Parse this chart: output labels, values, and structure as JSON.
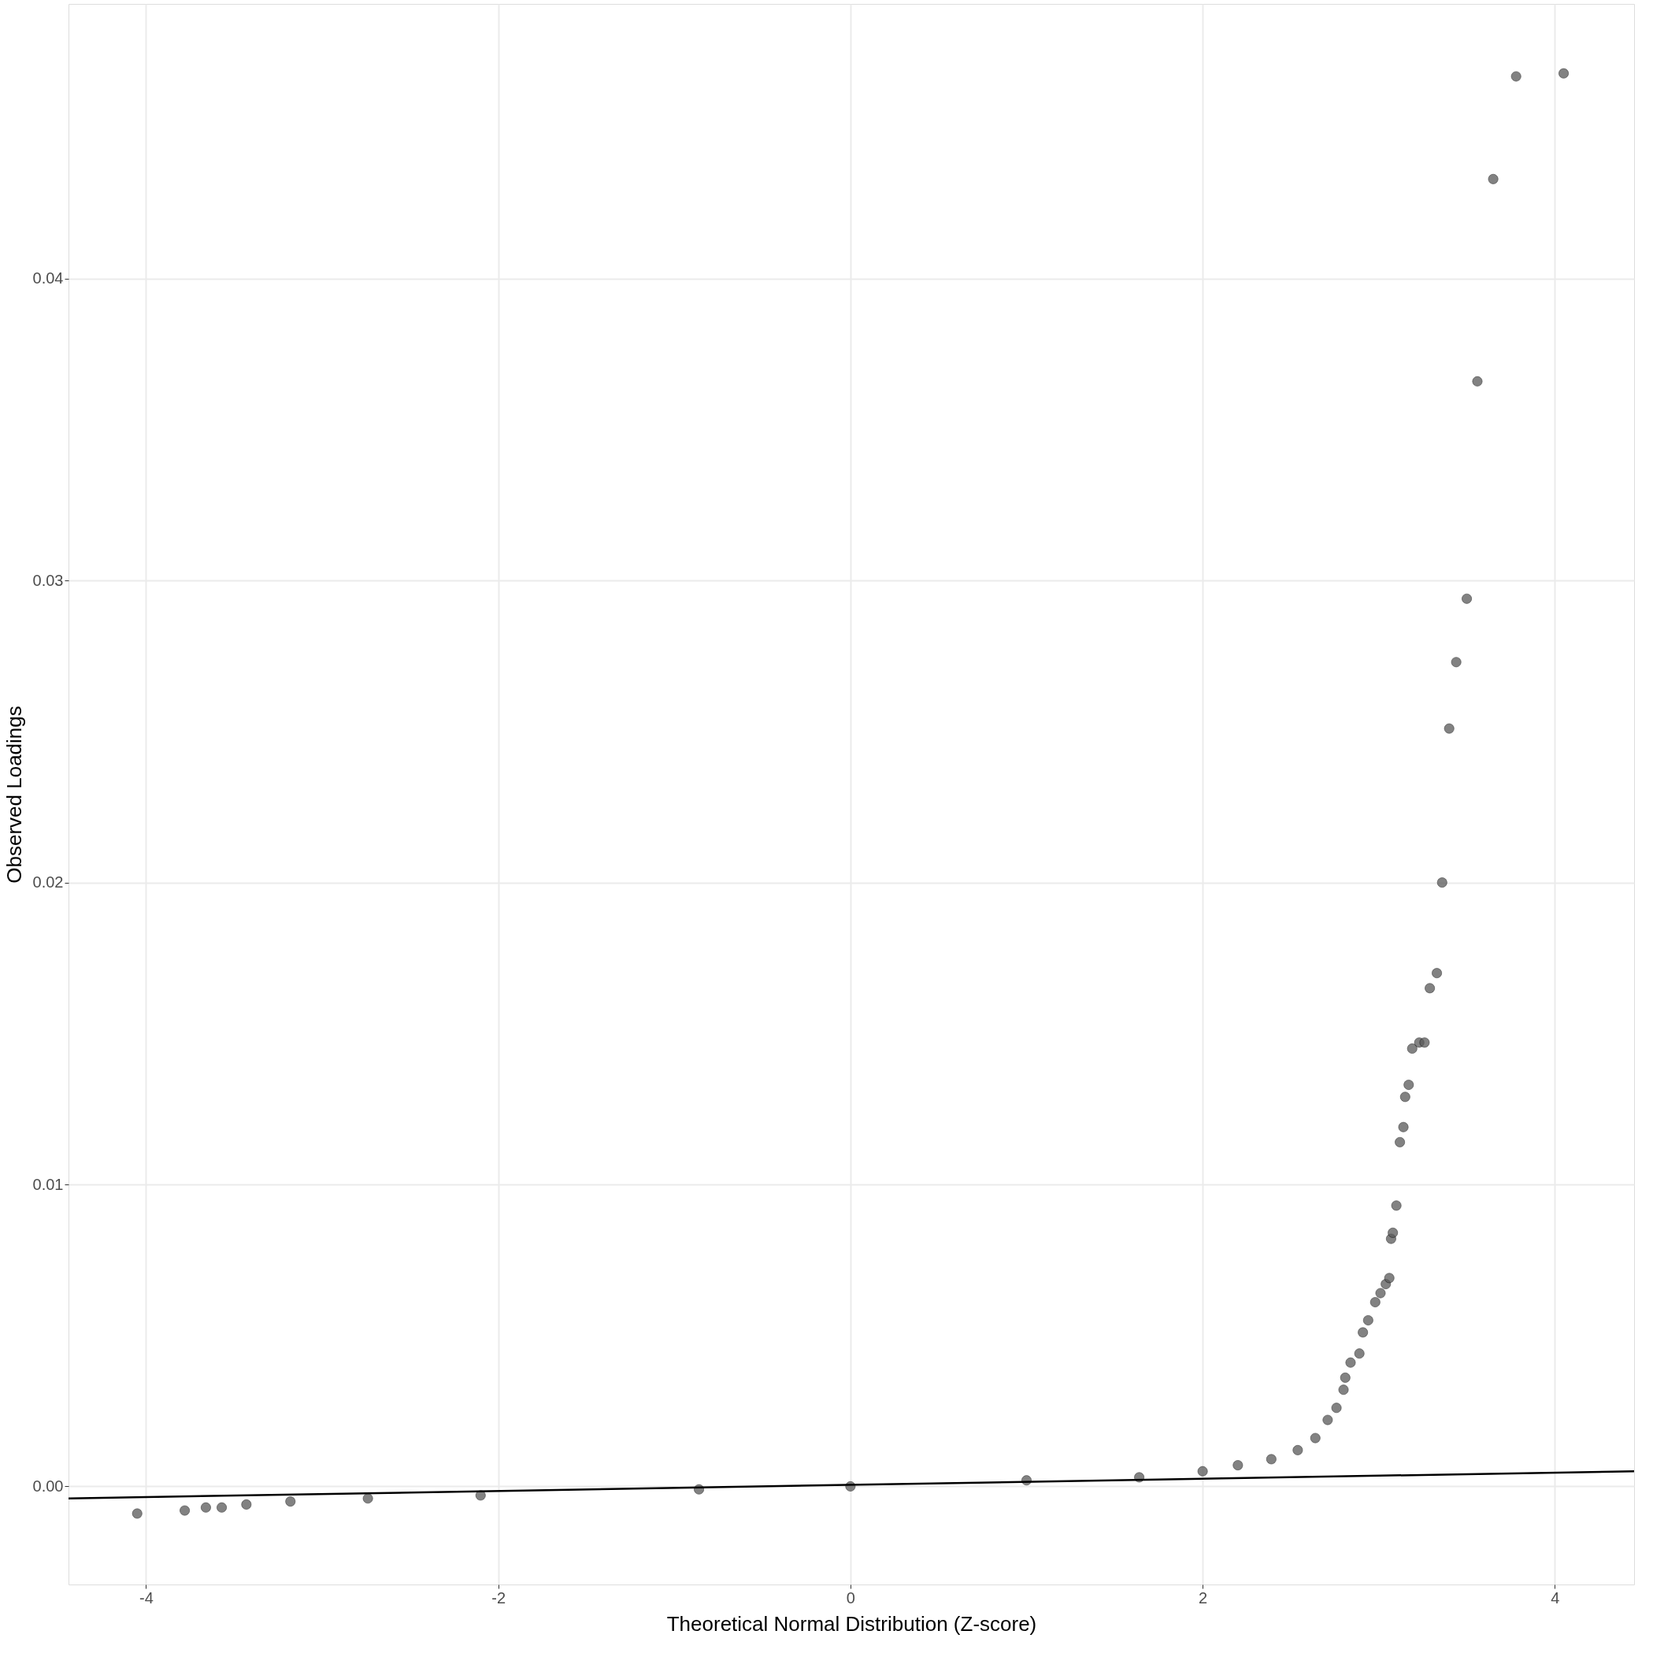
{
  "chart_data": {
    "type": "scatter",
    "xlabel": "Theoretical Normal Distribution (Z-score)",
    "ylabel": "Observed Loadings",
    "xlim": [
      -4.44,
      4.45
    ],
    "ylim": [
      -0.00325,
      0.0491
    ],
    "xticks": [
      {
        "value": -4,
        "label": "-4"
      },
      {
        "value": -2,
        "label": "-2"
      },
      0,
      2,
      4
    ],
    "yticks": [
      {
        "value": 0.0,
        "label": "0.00"
      },
      {
        "value": 0.01,
        "label": "0.01"
      },
      {
        "value": 0.02,
        "label": "0.02"
      },
      {
        "value": 0.03,
        "label": "0.03"
      },
      {
        "value": 0.04,
        "label": "0.04"
      }
    ],
    "grid": true,
    "series": [
      {
        "color": "#595959",
        "marker": "circle",
        "x": [
          -4.05,
          -3.78,
          -3.66,
          -3.57,
          -3.43,
          -3.18,
          -2.74,
          -2.1,
          -0.86,
          0,
          1.0,
          1.64,
          2.0,
          2.2,
          2.39,
          2.54,
          2.64,
          2.71,
          2.76,
          2.8,
          2.81,
          2.84,
          2.89,
          2.91,
          2.94,
          2.98,
          3.01,
          3.04,
          3.06,
          3.07,
          3.08,
          3.1,
          3.12,
          3.14,
          3.15,
          3.17,
          3.19,
          3.23,
          3.26,
          3.29,
          3.33,
          3.36,
          3.4,
          3.44,
          3.5,
          3.56,
          3.65,
          3.78,
          4.05
        ],
        "values": [
          -0.0009,
          -0.0008,
          -0.0007,
          -0.0007,
          -0.0006,
          -0.0005,
          -0.0004,
          -0.0003,
          -0.0001,
          0.0,
          0.0002,
          0.0003,
          0.0005,
          0.0007,
          0.0009,
          0.0012,
          0.0016,
          0.0022,
          0.0026,
          0.0032,
          0.0036,
          0.0041,
          0.0044,
          0.0051,
          0.0055,
          0.0061,
          0.0064,
          0.0067,
          0.0069,
          0.0082,
          0.0084,
          0.0093,
          0.0114,
          0.0119,
          0.0129,
          0.0133,
          0.0145,
          0.0147,
          0.0147,
          0.0165,
          0.017,
          0.02,
          0.0251,
          0.0273,
          0.0294,
          0.0366,
          0.0433,
          0.0467,
          0.0468
        ]
      },
      {
        "type": "line",
        "color": "#000000",
        "x": [
          -4.44,
          4.45
        ],
        "values": [
          -0.0004,
          0.0005
        ]
      }
    ]
  }
}
